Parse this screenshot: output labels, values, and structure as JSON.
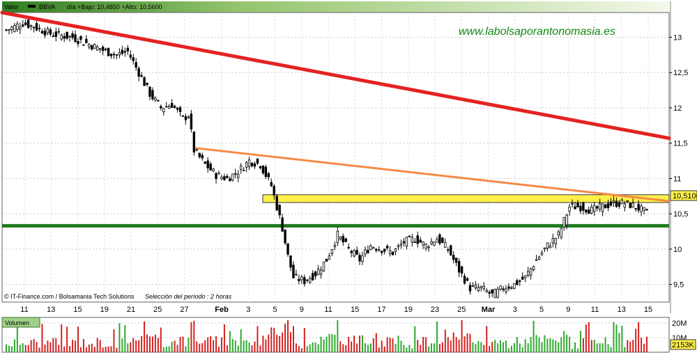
{
  "header": {
    "series_label": "Valor",
    "ticker": "BBVA",
    "info": "día +Bajo: 10,4850 +Alto: 10,5600"
  },
  "watermark": "www.labolsaporantonomasia.es",
  "credit": "© IT-Finance.com / Bolsamania Tech Solutions",
  "period": "Selección del período : 2 horas",
  "last_price_label": "10,5100",
  "volume_panel": {
    "title": "Volumen",
    "scale_labels": [
      "20M",
      "10M"
    ],
    "last_volume_label": "2153K"
  },
  "colors": {
    "up": "#2fa82f",
    "down": "#d42020",
    "main_trend": "#e52222",
    "secondary_trend": "#f58a45",
    "support": "#1f7a1f",
    "resistance_band": "#fff04a",
    "header_green": "#5da33a"
  },
  "chart_data": {
    "type": "candlestick",
    "title": "",
    "xlabel": "",
    "ylabel": "",
    "ylim": [
      9.25,
      13.35
    ],
    "yticks": [
      9.5,
      10,
      10.5,
      11,
      11.5,
      12,
      12.5,
      13
    ],
    "ytick_labels": [
      "9,5",
      "10",
      "10,5",
      "11",
      "11,5",
      "12",
      "12,5",
      "13"
    ],
    "x_range": [
      0,
      232
    ],
    "x_ticks": [
      {
        "label": "11",
        "x": 7
      },
      {
        "label": "13",
        "x": 17
      },
      {
        "label": "15",
        "x": 27
      },
      {
        "label": "19",
        "x": 37
      },
      {
        "label": "21",
        "x": 47
      },
      {
        "label": "25",
        "x": 57
      },
      {
        "label": "27",
        "x": 67
      },
      {
        "label": "Feb",
        "x": 81
      },
      {
        "label": "3",
        "x": 91
      },
      {
        "label": "5",
        "x": 101
      },
      {
        "label": "9",
        "x": 111
      },
      {
        "label": "11",
        "x": 121
      },
      {
        "label": "15",
        "x": 131
      },
      {
        "label": "17",
        "x": 141
      },
      {
        "label": "19",
        "x": 151
      },
      {
        "label": "23",
        "x": 161
      },
      {
        "label": "25",
        "x": 171
      },
      {
        "label": "Mar",
        "x": 181
      },
      {
        "label": "3",
        "x": 191
      },
      {
        "label": "5",
        "x": 201
      },
      {
        "label": "9",
        "x": 211
      },
      {
        "label": "11",
        "x": 221
      },
      {
        "label": "13",
        "x": 231
      },
      {
        "label": "15",
        "x": 241
      }
    ],
    "close_path": [
      [
        0,
        13.1
      ],
      [
        6,
        13.2
      ],
      [
        10,
        13.15
      ],
      [
        16,
        13.05
      ],
      [
        24,
        13.0
      ],
      [
        30,
        12.9
      ],
      [
        36,
        12.8
      ],
      [
        40,
        12.75
      ],
      [
        44,
        12.8
      ],
      [
        48,
        12.5
      ],
      [
        52,
        12.2
      ],
      [
        56,
        12.0
      ],
      [
        60,
        12.05
      ],
      [
        64,
        11.85
      ],
      [
        66,
        11.9
      ],
      [
        68,
        11.4
      ],
      [
        72,
        11.2
      ],
      [
        76,
        11.05
      ],
      [
        80,
        11.0
      ],
      [
        84,
        11.1
      ],
      [
        88,
        11.25
      ],
      [
        92,
        11.2
      ],
      [
        96,
        10.9
      ],
      [
        98,
        10.6
      ],
      [
        100,
        10.3
      ],
      [
        102,
        9.9
      ],
      [
        104,
        9.6
      ],
      [
        108,
        9.55
      ],
      [
        112,
        9.65
      ],
      [
        116,
        9.85
      ],
      [
        120,
        10.2
      ],
      [
        124,
        10.0
      ],
      [
        128,
        9.85
      ],
      [
        132,
        10.05
      ],
      [
        136,
        10.0
      ],
      [
        140,
        9.95
      ],
      [
        144,
        10.1
      ],
      [
        148,
        10.15
      ],
      [
        152,
        10.05
      ],
      [
        156,
        10.15
      ],
      [
        160,
        10.0
      ],
      [
        164,
        9.7
      ],
      [
        168,
        9.45
      ],
      [
        172,
        9.45
      ],
      [
        176,
        9.35
      ],
      [
        180,
        9.45
      ],
      [
        184,
        9.5
      ],
      [
        188,
        9.6
      ],
      [
        192,
        9.85
      ],
      [
        196,
        10.05
      ],
      [
        200,
        10.2
      ],
      [
        204,
        10.6
      ],
      [
        208,
        10.6
      ],
      [
        212,
        10.55
      ],
      [
        216,
        10.6
      ],
      [
        220,
        10.65
      ],
      [
        224,
        10.65
      ],
      [
        228,
        10.6
      ],
      [
        232,
        10.51
      ]
    ],
    "trendlines": [
      {
        "name": "main_trend",
        "from": [
          -2,
          13.35
        ],
        "to": [
          240,
          11.57
        ],
        "width": 5
      },
      {
        "name": "secondary_trend",
        "from": [
          69,
          11.43
        ],
        "to": [
          240,
          10.68
        ],
        "width": 3
      }
    ],
    "support_line": 10.33,
    "resistance_band": {
      "x_from": 95,
      "low": 10.66,
      "high": 10.77
    },
    "last_price": 10.51
  }
}
